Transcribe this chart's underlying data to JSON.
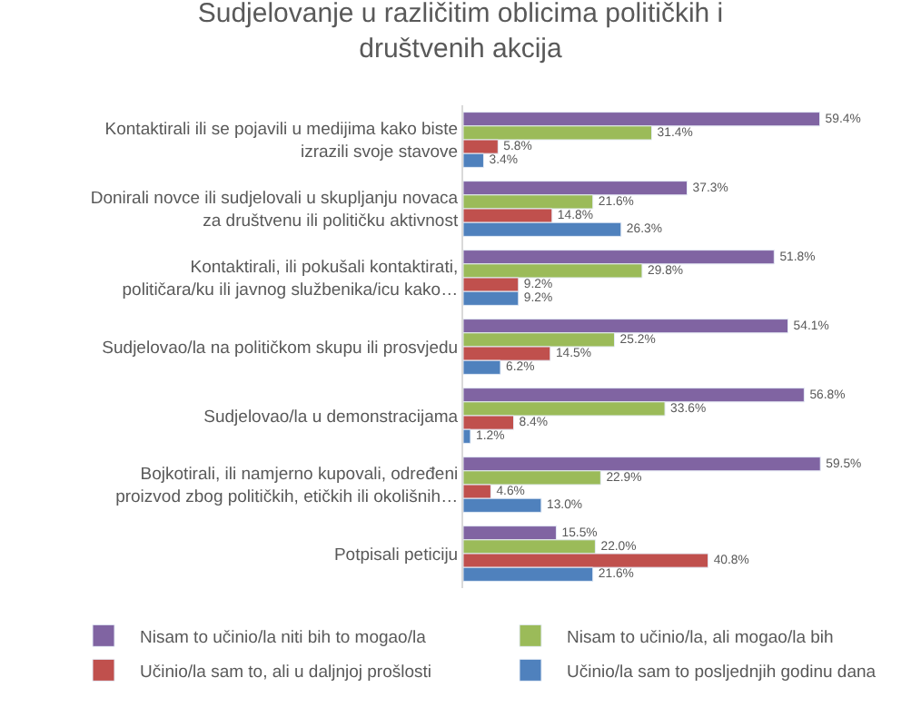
{
  "chart_data": {
    "type": "bar",
    "orientation": "horizontal",
    "legend": "bottom",
    "tick_labels": "y",
    "title": "Sudjelovanje u različitim oblicima političkih i društvenih akcija",
    "categories": [
      "Kontaktirali ili se pojavili u medijima kako biste izrazili svoje stavove",
      "Donirali novce ili sudjelovali u skupljanju novaca za društvenu ili političku aktivnost",
      "Kontaktirali, ili pokušali kontaktirati, političara/ku ili javnog službenika/icu kako…",
      "Sudjelovao/la na političkom skupu ili prosvjedu",
      "Sudjelovao/la u demonstracijama",
      "Bojkotirali, ili namjerno kupovali, određeni proizvod zbog političkih, etičkih ili okolišnih…",
      "Potpisali peticiju"
    ],
    "series": [
      {
        "name": "Nisam to učinio/la niti bih to mogao/la",
        "color": "#8064a2",
        "values": [
          59.4,
          37.3,
          51.8,
          54.1,
          56.8,
          59.5,
          15.5
        ],
        "value_labels": [
          "59.4%",
          "37.3%",
          "51.8%",
          "54.1%",
          "56.8%",
          "59.5%",
          "15.5%"
        ]
      },
      {
        "name": "Nisam to učinio/la, ali mogao/la bih",
        "color": "#9bbb59",
        "values": [
          31.4,
          21.6,
          29.8,
          25.2,
          33.6,
          22.9,
          22.0
        ],
        "value_labels": [
          "31.4%",
          "21.6%",
          "29.8%",
          "25.2%",
          "33.6%",
          "22.9%",
          "22.0%"
        ]
      },
      {
        "name": "Učinio/la sam to, ali u daljnjoj prošlosti",
        "color": "#c0504d",
        "values": [
          5.8,
          14.8,
          9.2,
          14.5,
          8.4,
          4.6,
          40.8
        ],
        "value_labels": [
          "5.8%",
          "14.8%",
          "9.2%",
          "14.5%",
          "8.4%",
          "4.6%",
          "40.8%"
        ]
      },
      {
        "name": "Učinio/la sam to posljednjih godinu dana",
        "color": "#4f81bd",
        "values": [
          3.4,
          26.3,
          9.2,
          6.2,
          1.2,
          13.0,
          21.6
        ],
        "value_labels": [
          "3.4%",
          "26.3%",
          "9.2%",
          "6.2%",
          "1.2%",
          "13.0%",
          "21.6%"
        ]
      }
    ]
  }
}
